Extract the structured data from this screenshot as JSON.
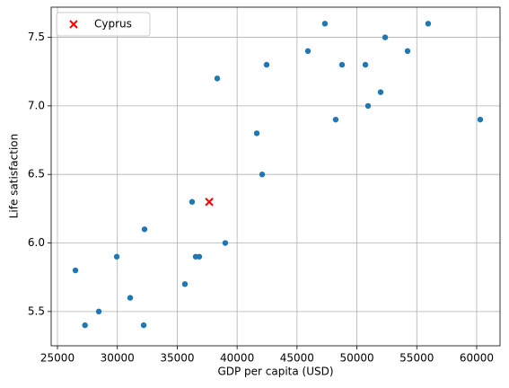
{
  "chart_data": {
    "type": "scatter",
    "xlabel": "GDP per capita (USD)",
    "ylabel": "Life satisfaction",
    "xlim": [
      24475,
      61950
    ],
    "ylim": [
      5.25,
      7.72
    ],
    "xticks": [
      25000,
      30000,
      35000,
      40000,
      45000,
      50000,
      55000,
      60000
    ],
    "yticks": [
      5.5,
      {
        "value": 6,
        "label": "6.0"
      },
      6.5,
      {
        "value": 7,
        "label": "7.0"
      },
      7.5
    ],
    "grid": true,
    "legend": "upper left",
    "series": [
      {
        "color": "#1f77b4",
        "marker": "circle",
        "x": [
          26500,
          27300,
          28450,
          29950,
          31070,
          32200,
          32270,
          35640,
          36240,
          36540,
          36840,
          38340,
          39010,
          41640,
          42090,
          42460,
          45910,
          47330,
          48230,
          48760,
          50710,
          50930,
          51980,
          52360,
          54230,
          55950,
          60300
        ],
        "values": [
          5.8,
          5.4,
          5.5,
          5.9,
          5.6,
          5.4,
          6.1,
          5.7,
          6.3,
          5.9,
          5.9,
          7.2,
          6.0,
          6.8,
          6.5,
          7.3,
          7.4,
          7.6,
          6.9,
          7.3,
          7.3,
          7.0,
          7.1,
          7.5,
          7.4,
          7.6,
          6.9
        ]
      },
      {
        "name": "Cyprus",
        "color": "#ff0000",
        "marker": "x",
        "x": [
          37670
        ],
        "values": [
          6.3
        ]
      }
    ]
  }
}
